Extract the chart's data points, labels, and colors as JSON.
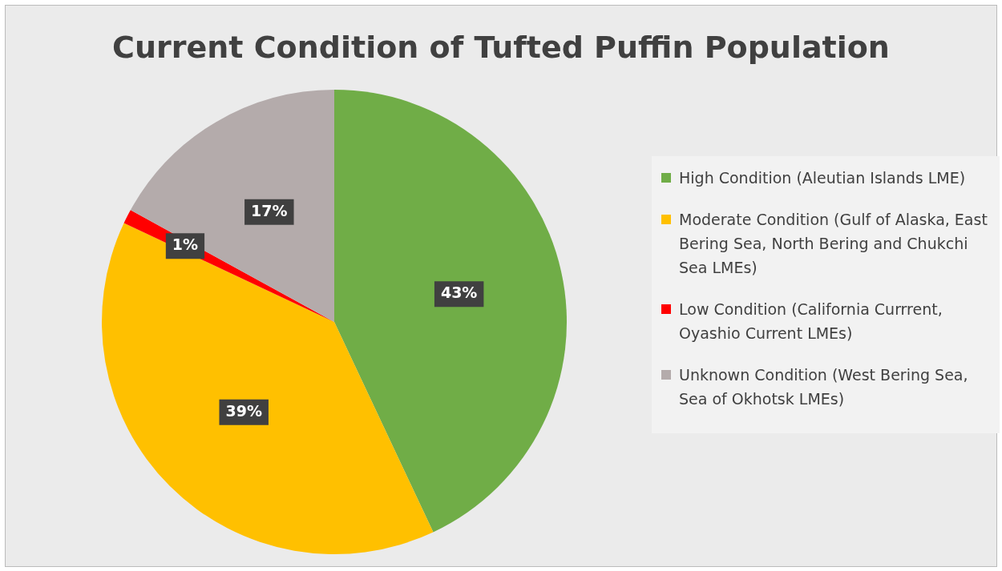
{
  "chart_data": {
    "type": "pie",
    "title": "Current Condition of Tufted Puffin Population",
    "categories": [
      "High Condition (Aleutian Islands LME)",
      "Moderate Condition (Gulf of Alaska, East Bering Sea, North Bering and Chukchi Sea LMEs)",
      "Low Condition (California Currrent, Oyashio Current LMEs)",
      "Unknown Condition (West Bering Sea, Sea of Okhotsk LMEs)"
    ],
    "values": [
      43,
      39,
      1,
      17
    ],
    "colors": [
      "#70ad47",
      "#ffc000",
      "#ff0000",
      "#b4abab"
    ],
    "value_labels": [
      "43%",
      "39%",
      "1%",
      "17%"
    ],
    "legend": "right"
  }
}
